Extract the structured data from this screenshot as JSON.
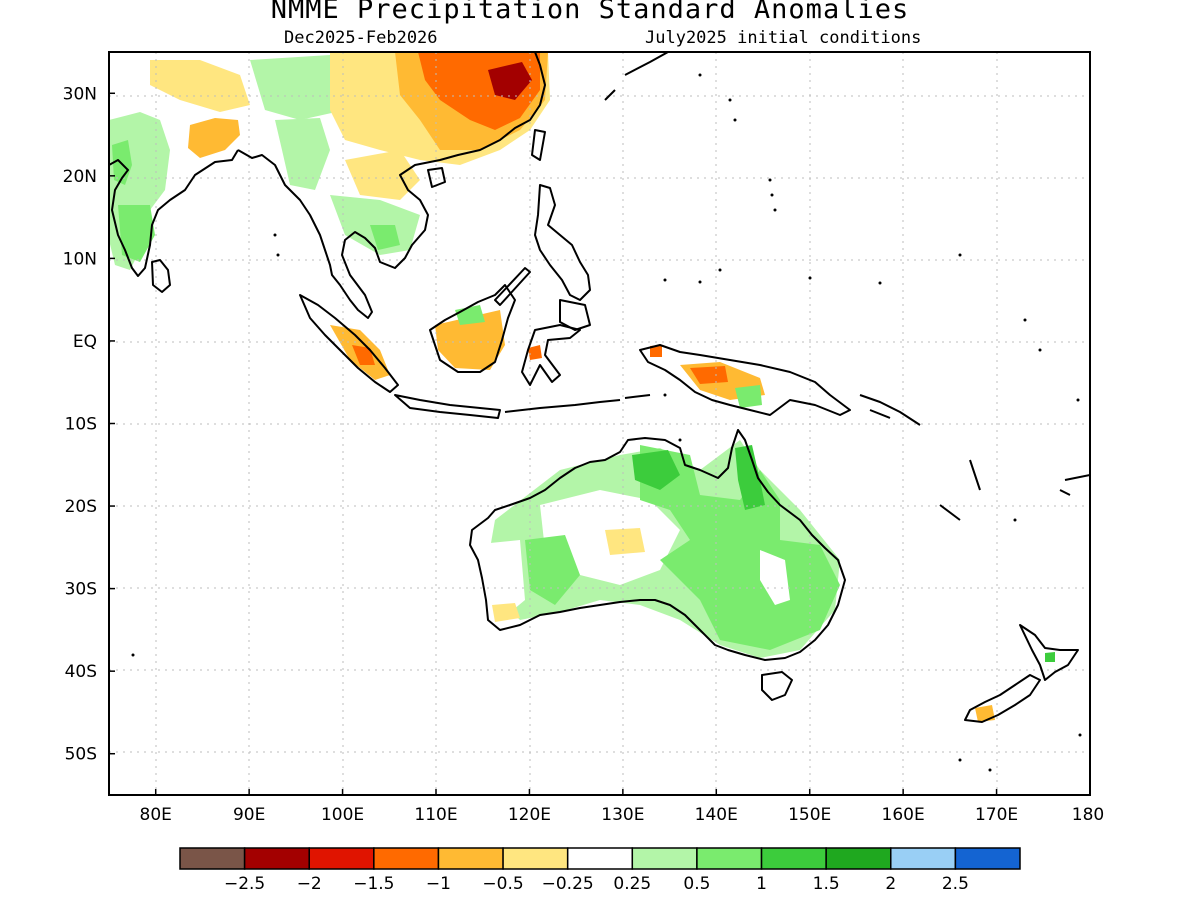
{
  "title": "NMME Precipitation Standard Anomalies",
  "period": "Dec2025-Feb2026",
  "initial_conditions": "July2025 initial conditions",
  "map": {
    "lon_range": [
      75,
      180
    ],
    "lat_range": [
      -55,
      35
    ],
    "lat_ticks": [
      {
        "value": 30,
        "label": "30N"
      },
      {
        "value": 20,
        "label": "20N"
      },
      {
        "value": 10,
        "label": "10N"
      },
      {
        "value": 0,
        "label": "EQ"
      },
      {
        "value": -10,
        "label": "10S"
      },
      {
        "value": -20,
        "label": "20S"
      },
      {
        "value": -30,
        "label": "30S"
      },
      {
        "value": -40,
        "label": "40S"
      },
      {
        "value": -50,
        "label": "50S"
      }
    ],
    "lon_ticks": [
      {
        "value": 80,
        "label": "80E"
      },
      {
        "value": 90,
        "label": "90E"
      },
      {
        "value": 100,
        "label": "100E"
      },
      {
        "value": 110,
        "label": "110E"
      },
      {
        "value": 120,
        "label": "120E"
      },
      {
        "value": 130,
        "label": "130E"
      },
      {
        "value": 140,
        "label": "140E"
      },
      {
        "value": 150,
        "label": "150E"
      },
      {
        "value": 160,
        "label": "160E"
      },
      {
        "value": 170,
        "label": "170E"
      },
      {
        "value": 180,
        "label": "180"
      }
    ],
    "grid": true
  },
  "colorbar": {
    "colors": [
      "#7a5548",
      "#a30000",
      "#e01400",
      "#ff6a00",
      "#ffba33",
      "#ffe680",
      "#ffffff",
      "#b3f5a8",
      "#7aeb6e",
      "#3ccc3c",
      "#1fa81f",
      "#99cff5",
      "#1464d2"
    ],
    "labels": [
      "-2.5",
      "-2",
      "-1.5",
      "-1",
      "-0.5",
      "-0.25",
      "0.25",
      "0.5",
      "1",
      "1.5",
      "2",
      "2.5"
    ]
  }
}
